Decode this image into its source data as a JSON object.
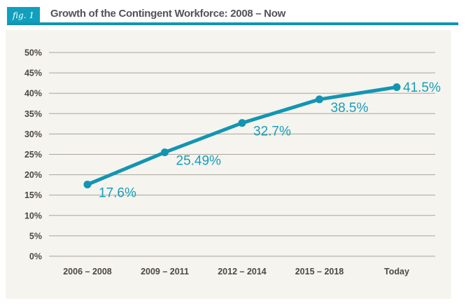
{
  "figure": {
    "badge": "fig. 1",
    "title": "Growth of the Contingent Workforce: 2008 – Now"
  },
  "colors": {
    "accent": "#1295b2",
    "label_teal": "#189db9",
    "badge_bg": "#109fbd",
    "grid": "#a6a49d",
    "axis_text": "#4c4843",
    "title_text": "#53525a",
    "panel_bg": "#f5f4ee"
  },
  "chart_data": {
    "type": "line",
    "title": "Growth of the Contingent Workforce: 2008 – Now",
    "categories": [
      "2006 – 2008",
      "2009 – 2011",
      "2012 – 2014",
      "2015 – 2018",
      "Today"
    ],
    "values": [
      17.6,
      25.49,
      32.7,
      38.5,
      41.5
    ],
    "point_labels": [
      "17.6%",
      "25.49%",
      "32.7%",
      "38.5%",
      "41.5%"
    ],
    "y_ticks": [
      "0%",
      "5%",
      "10%",
      "15%",
      "20%",
      "25%",
      "30%",
      "35%",
      "40%",
      "45%",
      "50%"
    ],
    "xlabel": "",
    "ylabel": "",
    "ylim": [
      0,
      50
    ],
    "grid": true,
    "legend": "none",
    "line_color": "#1295b2"
  }
}
